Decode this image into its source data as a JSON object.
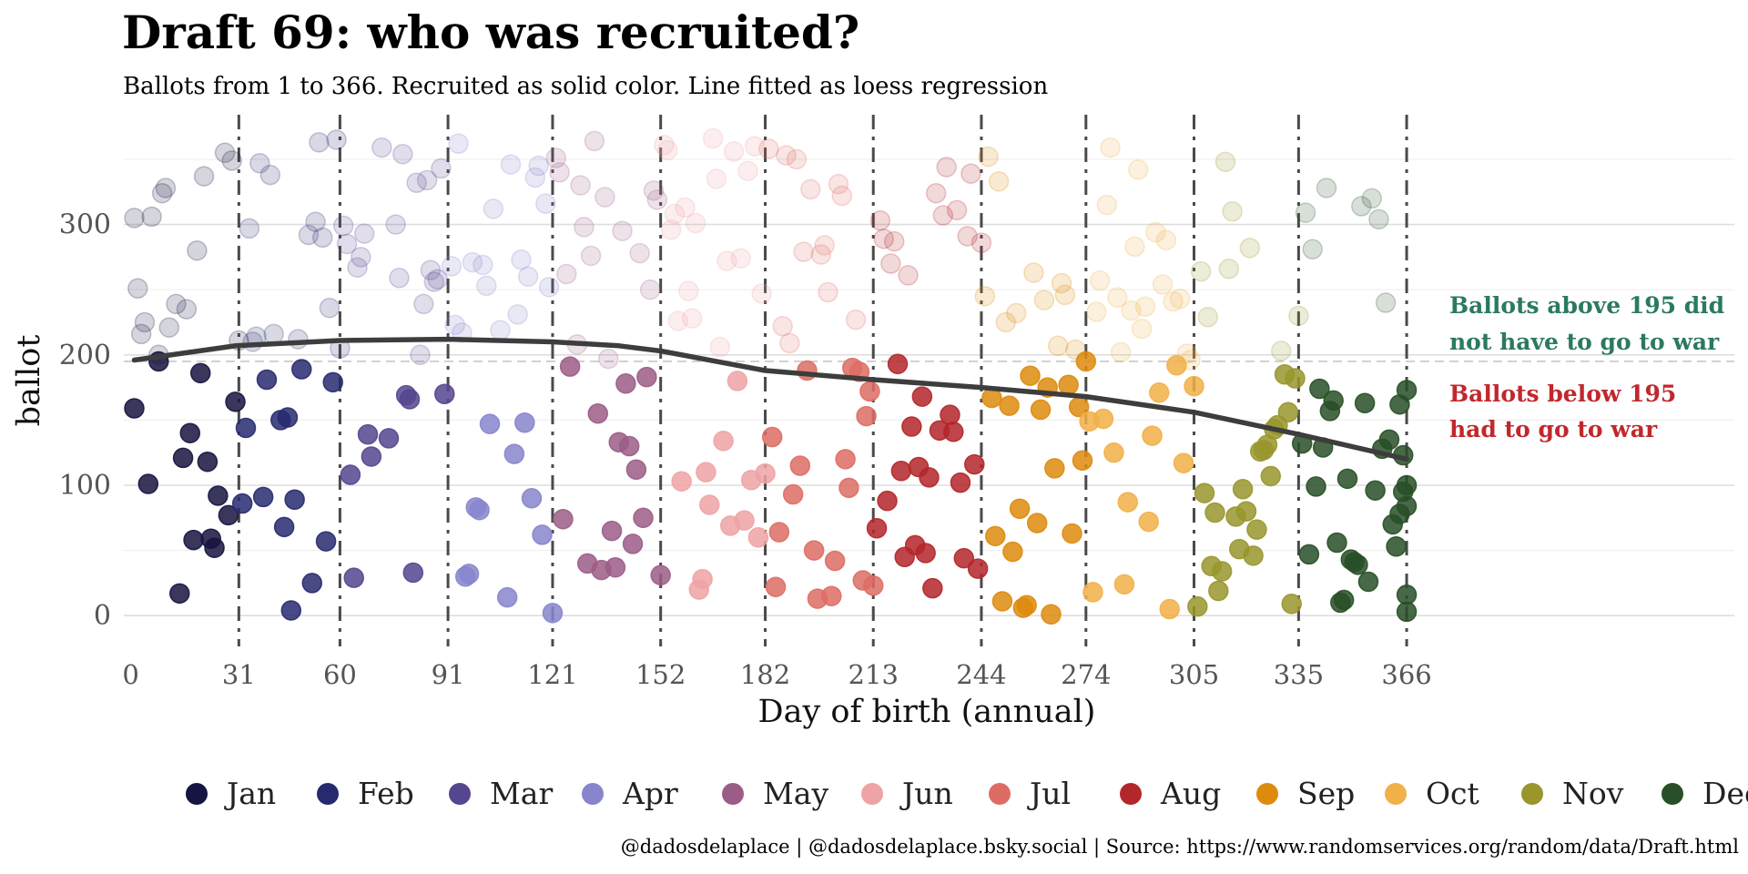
{
  "chart_data": {
    "type": "scatter",
    "title": "Draft 69: who was recruited?",
    "subtitle": "Ballots from 1 to 366. Recruited as solid color. Line fitted as loess regression",
    "xlabel": "Day of birth (annual)",
    "ylabel": "ballot",
    "x_ticks": [
      0,
      31,
      60,
      91,
      121,
      152,
      182,
      213,
      244,
      274,
      305,
      335,
      366
    ],
    "y_ticks": [
      0,
      100,
      200,
      300
    ],
    "xlim": [
      -2,
      460
    ],
    "ylim": [
      -25,
      380
    ],
    "threshold": 195,
    "grid": true,
    "legend_position": "bottom",
    "annotations": [
      {
        "lines": [
          "Ballots above 195 did",
          "not have to go to war"
        ],
        "color": "#2b7a5f"
      },
      {
        "lines": [
          "Ballots below 195",
          "had to go to war"
        ],
        "color": "#c0282d"
      }
    ],
    "caption": "@dadosdelaplace | @dadosdelaplace.bsky.social | Source: https://www.randomservices.org/random/data/Draft.html",
    "months": [
      {
        "name": "Jan",
        "color": "#161440"
      },
      {
        "name": "Feb",
        "color": "#272a6e"
      },
      {
        "name": "Mar",
        "color": "#56458f"
      },
      {
        "name": "Apr",
        "color": "#8785cc"
      },
      {
        "name": "May",
        "color": "#9b5d86"
      },
      {
        "name": "Jun",
        "color": "#eea3a5"
      },
      {
        "name": "Jul",
        "color": "#dd6d64"
      },
      {
        "name": "Aug",
        "color": "#b3262a"
      },
      {
        "name": "Sep",
        "color": "#dd8b0d"
      },
      {
        "name": "Oct",
        "color": "#f1b048"
      },
      {
        "name": "Nov",
        "color": "#98962d"
      },
      {
        "name": "Dec",
        "color": "#284f27"
      }
    ],
    "loess": [
      [
        1,
        196
      ],
      [
        30,
        207
      ],
      [
        60,
        211
      ],
      [
        91,
        212
      ],
      [
        121,
        210
      ],
      [
        140,
        207
      ],
      [
        152,
        203
      ],
      [
        170,
        194
      ],
      [
        182,
        188
      ],
      [
        213,
        181
      ],
      [
        244,
        175
      ],
      [
        274,
        168
      ],
      [
        305,
        156
      ],
      [
        335,
        139
      ],
      [
        366,
        120
      ]
    ],
    "points": [
      [
        1,
        305
      ],
      [
        1,
        159
      ],
      [
        2,
        251
      ],
      [
        3,
        216
      ],
      [
        4,
        225
      ],
      [
        5,
        101
      ],
      [
        6,
        306
      ],
      [
        8,
        200
      ],
      [
        8,
        195
      ],
      [
        9,
        324
      ],
      [
        10,
        328
      ],
      [
        11,
        221
      ],
      [
        13,
        239
      ],
      [
        14,
        17
      ],
      [
        15,
        121
      ],
      [
        16,
        235
      ],
      [
        17,
        140
      ],
      [
        18,
        58
      ],
      [
        19,
        280
      ],
      [
        20,
        186
      ],
      [
        21,
        337
      ],
      [
        22,
        118
      ],
      [
        23,
        59
      ],
      [
        24,
        52
      ],
      [
        25,
        92
      ],
      [
        27,
        355
      ],
      [
        28,
        77
      ],
      [
        29,
        349
      ],
      [
        30,
        164
      ],
      [
        31,
        211
      ],
      [
        32,
        86
      ],
      [
        33,
        144
      ],
      [
        34,
        297
      ],
      [
        35,
        210
      ],
      [
        36,
        214
      ],
      [
        37,
        347
      ],
      [
        38,
        91
      ],
      [
        39,
        181
      ],
      [
        40,
        338
      ],
      [
        41,
        216
      ],
      [
        43,
        150
      ],
      [
        44,
        68
      ],
      [
        45,
        152
      ],
      [
        46,
        4
      ],
      [
        47,
        89
      ],
      [
        48,
        212
      ],
      [
        49,
        189
      ],
      [
        51,
        292
      ],
      [
        52,
        25
      ],
      [
        53,
        302
      ],
      [
        54,
        363
      ],
      [
        55,
        290
      ],
      [
        56,
        57
      ],
      [
        57,
        236
      ],
      [
        58,
        179
      ],
      [
        59,
        365
      ],
      [
        60,
        205
      ],
      [
        61,
        299
      ],
      [
        62,
        285
      ],
      [
        63,
        108
      ],
      [
        64,
        29
      ],
      [
        65,
        267
      ],
      [
        66,
        275
      ],
      [
        67,
        293
      ],
      [
        68,
        139
      ],
      [
        69,
        122
      ],
      [
        72,
        359
      ],
      [
        74,
        136
      ],
      [
        76,
        300
      ],
      [
        77,
        259
      ],
      [
        78,
        354
      ],
      [
        79,
        169
      ],
      [
        80,
        166
      ],
      [
        81,
        33
      ],
      [
        82,
        332
      ],
      [
        83,
        200
      ],
      [
        84,
        239
      ],
      [
        85,
        334
      ],
      [
        86,
        265
      ],
      [
        87,
        256
      ],
      [
        88,
        258
      ],
      [
        89,
        343
      ],
      [
        90,
        170
      ],
      [
        92,
        268
      ],
      [
        93,
        223
      ],
      [
        94,
        362
      ],
      [
        95,
        217
      ],
      [
        96,
        30
      ],
      [
        97,
        32
      ],
      [
        98,
        271
      ],
      [
        99,
        83
      ],
      [
        100,
        81
      ],
      [
        101,
        269
      ],
      [
        102,
        253
      ],
      [
        103,
        147
      ],
      [
        104,
        312
      ],
      [
        106,
        219
      ],
      [
        108,
        14
      ],
      [
        109,
        346
      ],
      [
        110,
        124
      ],
      [
        111,
        231
      ],
      [
        112,
        273
      ],
      [
        113,
        148
      ],
      [
        114,
        260
      ],
      [
        115,
        90
      ],
      [
        116,
        336
      ],
      [
        117,
        345
      ],
      [
        118,
        62
      ],
      [
        119,
        316
      ],
      [
        120,
        252
      ],
      [
        121,
        2
      ],
      [
        122,
        351
      ],
      [
        123,
        340
      ],
      [
        124,
        74
      ],
      [
        125,
        262
      ],
      [
        126,
        191
      ],
      [
        128,
        208
      ],
      [
        129,
        330
      ],
      [
        130,
        298
      ],
      [
        131,
        40
      ],
      [
        132,
        276
      ],
      [
        133,
        364
      ],
      [
        134,
        155
      ],
      [
        135,
        35
      ],
      [
        136,
        321
      ],
      [
        137,
        197
      ],
      [
        138,
        65
      ],
      [
        139,
        37
      ],
      [
        140,
        133
      ],
      [
        141,
        295
      ],
      [
        142,
        178
      ],
      [
        143,
        130
      ],
      [
        144,
        55
      ],
      [
        145,
        112
      ],
      [
        146,
        278
      ],
      [
        147,
        75
      ],
      [
        148,
        183
      ],
      [
        149,
        250
      ],
      [
        150,
        326
      ],
      [
        151,
        319
      ],
      [
        152,
        31
      ],
      [
        153,
        361
      ],
      [
        154,
        357
      ],
      [
        155,
        296
      ],
      [
        156,
        308
      ],
      [
        157,
        226
      ],
      [
        158,
        103
      ],
      [
        159,
        313
      ],
      [
        160,
        249
      ],
      [
        161,
        228
      ],
      [
        162,
        301
      ],
      [
        163,
        20
      ],
      [
        164,
        28
      ],
      [
        165,
        110
      ],
      [
        166,
        85
      ],
      [
        167,
        366
      ],
      [
        168,
        335
      ],
      [
        169,
        206
      ],
      [
        170,
        134
      ],
      [
        171,
        272
      ],
      [
        172,
        69
      ],
      [
        173,
        356
      ],
      [
        174,
        180
      ],
      [
        175,
        274
      ],
      [
        176,
        73
      ],
      [
        177,
        341
      ],
      [
        178,
        104
      ],
      [
        179,
        360
      ],
      [
        180,
        60
      ],
      [
        181,
        247
      ],
      [
        182,
        109
      ],
      [
        183,
        358
      ],
      [
        184,
        137
      ],
      [
        185,
        22
      ],
      [
        186,
        64
      ],
      [
        187,
        222
      ],
      [
        188,
        353
      ],
      [
        189,
        209
      ],
      [
        190,
        93
      ],
      [
        191,
        350
      ],
      [
        192,
        115
      ],
      [
        193,
        279
      ],
      [
        194,
        188
      ],
      [
        195,
        327
      ],
      [
        196,
        50
      ],
      [
        197,
        13
      ],
      [
        198,
        277
      ],
      [
        199,
        284
      ],
      [
        200,
        248
      ],
      [
        201,
        15
      ],
      [
        202,
        42
      ],
      [
        203,
        331
      ],
      [
        204,
        322
      ],
      [
        205,
        120
      ],
      [
        206,
        98
      ],
      [
        207,
        190
      ],
      [
        208,
        227
      ],
      [
        209,
        187
      ],
      [
        210,
        27
      ],
      [
        211,
        153
      ],
      [
        212,
        172
      ],
      [
        213,
        23
      ],
      [
        214,
        67
      ],
      [
        215,
        303
      ],
      [
        216,
        289
      ],
      [
        217,
        88
      ],
      [
        218,
        270
      ],
      [
        219,
        287
      ],
      [
        220,
        193
      ],
      [
        221,
        111
      ],
      [
        222,
        45
      ],
      [
        223,
        261
      ],
      [
        224,
        145
      ],
      [
        225,
        54
      ],
      [
        226,
        114
      ],
      [
        227,
        168
      ],
      [
        228,
        48
      ],
      [
        229,
        106
      ],
      [
        230,
        21
      ],
      [
        231,
        324
      ],
      [
        232,
        142
      ],
      [
        233,
        307
      ],
      [
        234,
        344
      ],
      [
        235,
        154
      ],
      [
        236,
        141
      ],
      [
        237,
        311
      ],
      [
        238,
        102
      ],
      [
        239,
        44
      ],
      [
        240,
        291
      ],
      [
        241,
        339
      ],
      [
        242,
        116
      ],
      [
        243,
        36
      ],
      [
        244,
        286
      ],
      [
        245,
        245
      ],
      [
        246,
        352
      ],
      [
        247,
        167
      ],
      [
        248,
        61
      ],
      [
        249,
        333
      ],
      [
        250,
        11
      ],
      [
        251,
        225
      ],
      [
        252,
        161
      ],
      [
        253,
        49
      ],
      [
        254,
        232
      ],
      [
        255,
        82
      ],
      [
        256,
        6
      ],
      [
        257,
        8
      ],
      [
        258,
        184
      ],
      [
        259,
        263
      ],
      [
        260,
        71
      ],
      [
        261,
        158
      ],
      [
        262,
        242
      ],
      [
        263,
        175
      ],
      [
        264,
        1
      ],
      [
        265,
        113
      ],
      [
        266,
        207
      ],
      [
        267,
        255
      ],
      [
        268,
        246
      ],
      [
        269,
        177
      ],
      [
        270,
        63
      ],
      [
        271,
        204
      ],
      [
        272,
        160
      ],
      [
        273,
        119
      ],
      [
        274,
        195
      ],
      [
        275,
        149
      ],
      [
        276,
        18
      ],
      [
        277,
        233
      ],
      [
        278,
        257
      ],
      [
        279,
        151
      ],
      [
        280,
        315
      ],
      [
        281,
        359
      ],
      [
        282,
        125
      ],
      [
        283,
        244
      ],
      [
        284,
        202
      ],
      [
        285,
        24
      ],
      [
        286,
        87
      ],
      [
        287,
        234
      ],
      [
        288,
        283
      ],
      [
        289,
        342
      ],
      [
        290,
        220
      ],
      [
        291,
        237
      ],
      [
        292,
        72
      ],
      [
        293,
        138
      ],
      [
        294,
        294
      ],
      [
        295,
        171
      ],
      [
        296,
        254
      ],
      [
        297,
        288
      ],
      [
        298,
        5
      ],
      [
        299,
        241
      ],
      [
        300,
        192
      ],
      [
        301,
        243
      ],
      [
        302,
        117
      ],
      [
        303,
        201
      ],
      [
        304,
        196
      ],
      [
        305,
        176
      ],
      [
        306,
        7
      ],
      [
        307,
        264
      ],
      [
        308,
        94
      ],
      [
        309,
        229
      ],
      [
        310,
        38
      ],
      [
        311,
        79
      ],
      [
        312,
        19
      ],
      [
        313,
        34
      ],
      [
        314,
        348
      ],
      [
        315,
        266
      ],
      [
        316,
        310
      ],
      [
        317,
        76
      ],
      [
        318,
        51
      ],
      [
        319,
        97
      ],
      [
        320,
        80
      ],
      [
        321,
        282
      ],
      [
        322,
        46
      ],
      [
        323,
        66
      ],
      [
        324,
        126
      ],
      [
        325,
        127
      ],
      [
        326,
        131
      ],
      [
        327,
        107
      ],
      [
        328,
        143
      ],
      [
        329,
        146
      ],
      [
        330,
        203
      ],
      [
        331,
        185
      ],
      [
        332,
        156
      ],
      [
        333,
        9
      ],
      [
        334,
        182
      ],
      [
        335,
        230
      ],
      [
        336,
        132
      ],
      [
        337,
        309
      ],
      [
        338,
        47
      ],
      [
        339,
        281
      ],
      [
        340,
        99
      ],
      [
        341,
        174
      ],
      [
        342,
        129
      ],
      [
        343,
        328
      ],
      [
        344,
        157
      ],
      [
        345,
        165
      ],
      [
        346,
        56
      ],
      [
        347,
        10
      ],
      [
        348,
        12
      ],
      [
        349,
        105
      ],
      [
        350,
        43
      ],
      [
        351,
        41
      ],
      [
        352,
        39
      ],
      [
        353,
        314
      ],
      [
        354,
        163
      ],
      [
        355,
        26
      ],
      [
        356,
        320
      ],
      [
        357,
        96
      ],
      [
        358,
        304
      ],
      [
        359,
        128
      ],
      [
        360,
        240
      ],
      [
        361,
        135
      ],
      [
        362,
        70
      ],
      [
        363,
        53
      ],
      [
        364,
        162
      ],
      [
        365,
        95
      ],
      [
        366,
        84
      ],
      [
        366,
        173
      ],
      [
        364,
        78
      ],
      [
        365,
        123
      ],
      [
        366,
        16
      ],
      [
        366,
        3
      ],
      [
        366,
        100
      ]
    ]
  }
}
